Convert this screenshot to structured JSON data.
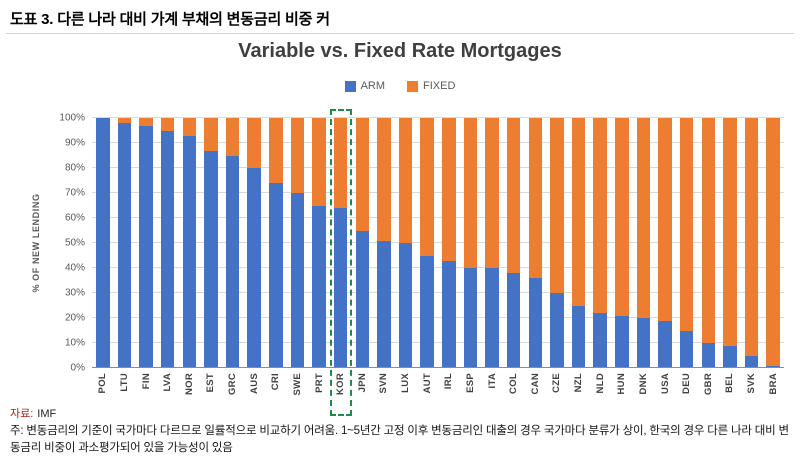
{
  "page": {
    "heading": "도표 3. 다른 나라 대비 가계 부채의 변동금리 비중 커",
    "source": {
      "label": "자료:",
      "value": "IMF"
    },
    "note": "주:  변동금리의 기준이 국가마다 다르므로 일률적으로 비교하기 어려움. 1~5년간 고정 이후 변동금리인 대출의 경우 국가마다 분류가 상이, 한국의 경우 다른 나라 대비 변동금리 비중이 과소평가되어 있을 가능성이 있음"
  },
  "chart_data": {
    "type": "bar",
    "stacked": true,
    "title": "Variable vs. Fixed Rate Mortgages",
    "ylabel": "% OF NEW LENDING",
    "ylim": [
      0,
      100
    ],
    "yticks": [
      "0%",
      "10%",
      "20%",
      "30%",
      "40%",
      "50%",
      "60%",
      "70%",
      "80%",
      "90%",
      "100%"
    ],
    "legend": [
      "ARM",
      "FIXED"
    ],
    "legend_position": "top",
    "grid": true,
    "colors": {
      "arm": "#4472C4",
      "fixed": "#ED7D31",
      "highlight": "#1E8A4C",
      "grid": "#D9D9D9",
      "axis": "#8C8C8C"
    },
    "highlight_category": "KOR",
    "categories": [
      "POL",
      "LTU",
      "FIN",
      "LVA",
      "NOR",
      "EST",
      "GRC",
      "AUS",
      "CRI",
      "SWE",
      "PRT",
      "KOR",
      "JPN",
      "SVN",
      "LUX",
      "AUT",
      "IRL",
      "ESP",
      "ITA",
      "COL",
      "CAN",
      "CZE",
      "NZL",
      "NLD",
      "HUN",
      "DNK",
      "USA",
      "DEU",
      "GBR",
      "BEL",
      "SVK",
      "BRA"
    ],
    "series": [
      {
        "name": "ARM",
        "values": [
          100,
          98,
          97,
          95,
          93,
          87,
          85,
          80,
          74,
          70,
          65,
          64,
          55,
          51,
          50,
          45,
          43,
          40,
          40,
          38,
          36,
          30,
          25,
          22,
          21,
          20,
          19,
          15,
          10,
          9,
          5,
          1
        ]
      },
      {
        "name": "FIXED",
        "values": [
          0,
          2,
          3,
          5,
          7,
          13,
          15,
          20,
          26,
          30,
          35,
          36,
          45,
          49,
          50,
          55,
          57,
          60,
          60,
          62,
          64,
          70,
          75,
          78,
          79,
          80,
          81,
          85,
          90,
          91,
          95,
          99
        ]
      }
    ]
  }
}
